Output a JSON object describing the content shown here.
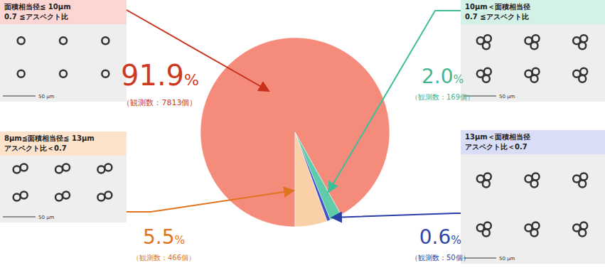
{
  "chart_data": {
    "type": "pie",
    "categories": [
      "面積相当径≦ 10μm\n0.7 ≦アスペクト比",
      "10μm＜面積相当径\n0.7 ≦アスペクト比",
      "13μm＜面積相当径\nアスペクト比＜0.7",
      "8μm≦面積相当径≦ 13μm\nアスペクト比＜0.7"
    ],
    "values": [
      91.9,
      2.0,
      0.6,
      5.5
    ],
    "value_labels": [
      "91.9%",
      "2.0%",
      "0.6%",
      "5.5%"
    ],
    "count_labels": [
      "（観測数：7813個）",
      "（観測数：169個）",
      "（観測数：50個）",
      "（観測数：466個）"
    ],
    "colors": [
      "#f48b7b",
      "#5fcba8",
      "#3e55c8",
      "#f9d0a8"
    ],
    "data_labels": true,
    "scale_label": "50 μm"
  }
}
